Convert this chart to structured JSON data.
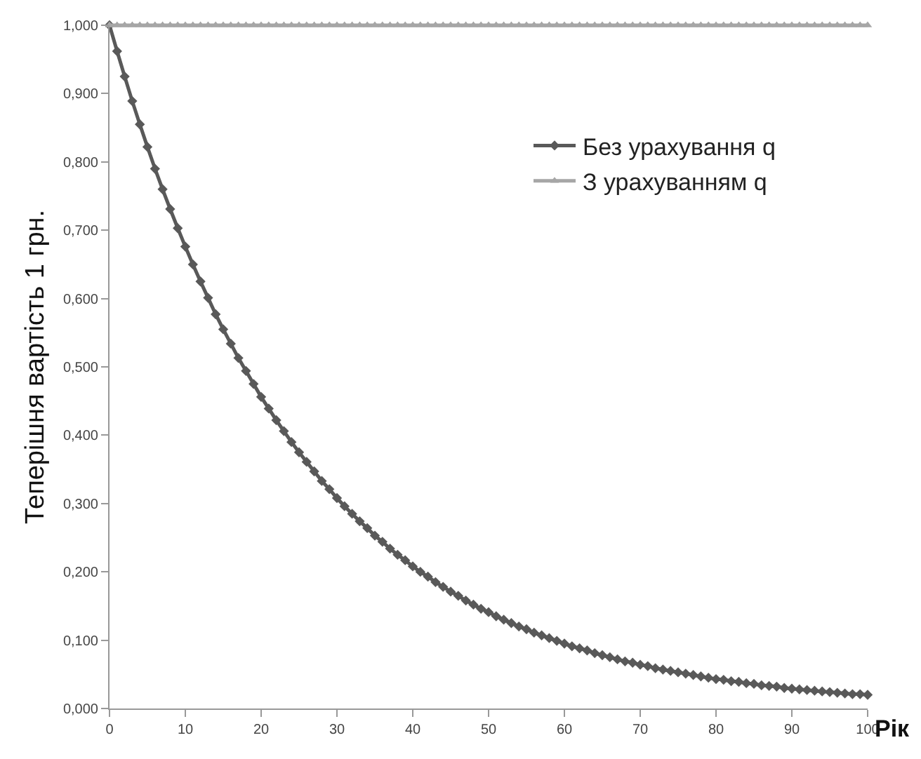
{
  "chart_data": {
    "type": "line",
    "xlabel": "Рік",
    "ylabel": "Теперішня вартість 1 грн.",
    "x": [
      0,
      1,
      2,
      3,
      4,
      5,
      6,
      7,
      8,
      9,
      10,
      11,
      12,
      13,
      14,
      15,
      16,
      17,
      18,
      19,
      20,
      21,
      22,
      23,
      24,
      25,
      26,
      27,
      28,
      29,
      30,
      31,
      32,
      33,
      34,
      35,
      36,
      37,
      38,
      39,
      40,
      41,
      42,
      43,
      44,
      45,
      46,
      47,
      48,
      49,
      50,
      51,
      52,
      53,
      54,
      55,
      56,
      57,
      58,
      59,
      60,
      61,
      62,
      63,
      64,
      65,
      66,
      67,
      68,
      69,
      70,
      71,
      72,
      73,
      74,
      75,
      76,
      77,
      78,
      79,
      80,
      81,
      82,
      83,
      84,
      85,
      86,
      87,
      88,
      89,
      90,
      91,
      92,
      93,
      94,
      95,
      96,
      97,
      98,
      99,
      100
    ],
    "series": [
      {
        "name": "Без урахування q",
        "color": "#595959",
        "marker": "diamond",
        "values": [
          1.0,
          0.962,
          0.925,
          0.889,
          0.855,
          0.822,
          0.79,
          0.76,
          0.731,
          0.703,
          0.676,
          0.65,
          0.625,
          0.601,
          0.577,
          0.555,
          0.534,
          0.513,
          0.494,
          0.475,
          0.456,
          0.439,
          0.422,
          0.406,
          0.39,
          0.375,
          0.361,
          0.347,
          0.333,
          0.321,
          0.308,
          0.296,
          0.285,
          0.274,
          0.264,
          0.253,
          0.244,
          0.234,
          0.225,
          0.217,
          0.208,
          0.2,
          0.193,
          0.185,
          0.178,
          0.171,
          0.165,
          0.158,
          0.152,
          0.146,
          0.141,
          0.135,
          0.13,
          0.125,
          0.12,
          0.116,
          0.111,
          0.107,
          0.103,
          0.099,
          0.095,
          0.091,
          0.088,
          0.085,
          0.081,
          0.078,
          0.075,
          0.072,
          0.069,
          0.067,
          0.064,
          0.062,
          0.059,
          0.057,
          0.055,
          0.053,
          0.051,
          0.049,
          0.047,
          0.045,
          0.043,
          0.042,
          0.04,
          0.039,
          0.037,
          0.036,
          0.034,
          0.033,
          0.032,
          0.03,
          0.029,
          0.028,
          0.027,
          0.026,
          0.025,
          0.024,
          0.023,
          0.022,
          0.021,
          0.021,
          0.02
        ]
      },
      {
        "name": "З урахуванням q",
        "color": "#a6a6a6",
        "marker": "triangle",
        "values": [
          1,
          1,
          1,
          1,
          1,
          1,
          1,
          1,
          1,
          1,
          1,
          1,
          1,
          1,
          1,
          1,
          1,
          1,
          1,
          1,
          1,
          1,
          1,
          1,
          1,
          1,
          1,
          1,
          1,
          1,
          1,
          1,
          1,
          1,
          1,
          1,
          1,
          1,
          1,
          1,
          1,
          1,
          1,
          1,
          1,
          1,
          1,
          1,
          1,
          1,
          1,
          1,
          1,
          1,
          1,
          1,
          1,
          1,
          1,
          1,
          1,
          1,
          1,
          1,
          1,
          1,
          1,
          1,
          1,
          1,
          1,
          1,
          1,
          1,
          1,
          1,
          1,
          1,
          1,
          1,
          1,
          1,
          1,
          1,
          1,
          1,
          1,
          1,
          1,
          1,
          1,
          1,
          1,
          1,
          1,
          1,
          1,
          1,
          1,
          1,
          1
        ]
      }
    ],
    "xlim": [
      0,
      100
    ],
    "xticks": [
      0,
      10,
      20,
      30,
      40,
      50,
      60,
      70,
      80,
      90,
      100
    ],
    "ylim": [
      0,
      1
    ],
    "yticks": [
      {
        "value": 0,
        "label": "0,000"
      },
      {
        "value": 0.1,
        "label": "0,100"
      },
      {
        "value": 0.2,
        "label": "0,200"
      },
      {
        "value": 0.3,
        "label": "0,300"
      },
      {
        "value": 0.4,
        "label": "0,400"
      },
      {
        "value": 0.5,
        "label": "0,500"
      },
      {
        "value": 0.6,
        "label": "0,600"
      },
      {
        "value": 0.7,
        "label": "0,700"
      },
      {
        "value": 0.8,
        "label": "0,800"
      },
      {
        "value": 0.9,
        "label": "0,900"
      },
      {
        "value": 1,
        "label": "1,000"
      }
    ],
    "grid": false,
    "legend": "top right",
    "line_style": "solid"
  }
}
